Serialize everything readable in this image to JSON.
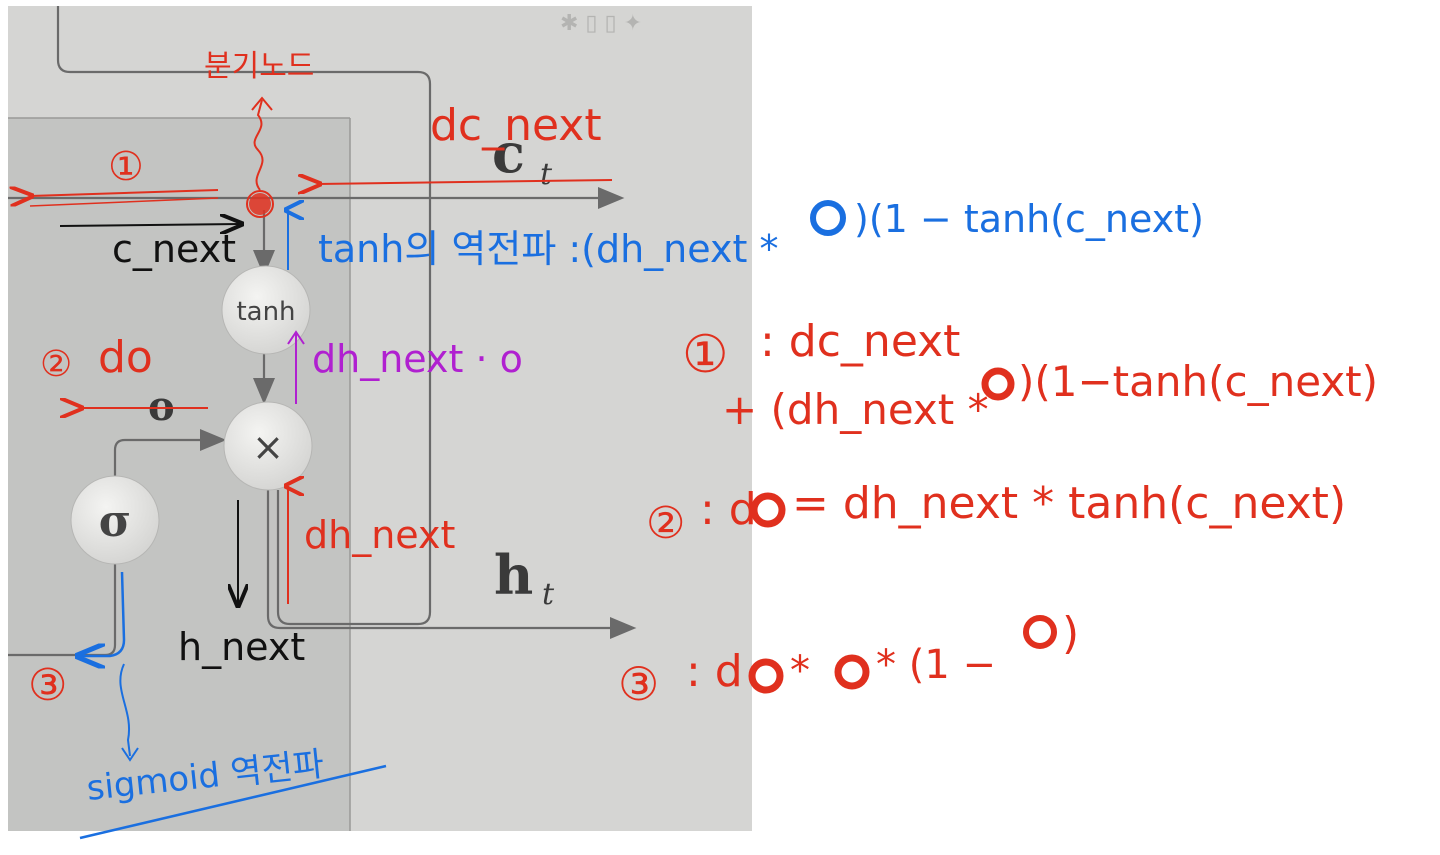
{
  "colors": {
    "red": "#e0301e",
    "blue": "#1a6fe0",
    "purple": "#b020d0",
    "black": "#111111",
    "photo_bg": "#d4d4d2",
    "photo_panel": "#c2c3c1",
    "node_fill": "#e8e8e6"
  },
  "printed": {
    "ct_label": "c",
    "ct_sub": "t",
    "ht_label": "h",
    "ht_sub": "t",
    "o_label": "o",
    "tanh_node": "tanh",
    "mul_node": "×",
    "sigma_node": "σ"
  },
  "annotations": {
    "branch_node": "분기노드",
    "dc_next_top": "dc_next",
    "circle_1": "①",
    "circle_2": "②",
    "circle_3": "③",
    "c_next": "c_next",
    "tanh_backprop": "tanh의 역전파 :(dh_next * ",
    "tanh_backprop_tail": ")(1 − tanh(c_next)",
    "do_left": "do",
    "dh_next_o": "dh_next · o",
    "dh_next": "dh_next",
    "h_next": "h_next",
    "sigmoid_backprop": "sigmoid 역전파",
    "eq1_label": "①",
    "eq1_line1": ": dc_next",
    "eq1_line2_a": "+ (dh_next *",
    "eq1_line2_b": ")(1−tanh(c_next)",
    "eq2_label": "②",
    "eq2_a": ": d",
    "eq2_b": "= dh_next * tanh(c_next)",
    "eq3_label": "③",
    "eq3_a": ": d",
    "eq3_b": "*",
    "eq3_c": "* (1 −",
    "eq3_d": ")"
  }
}
